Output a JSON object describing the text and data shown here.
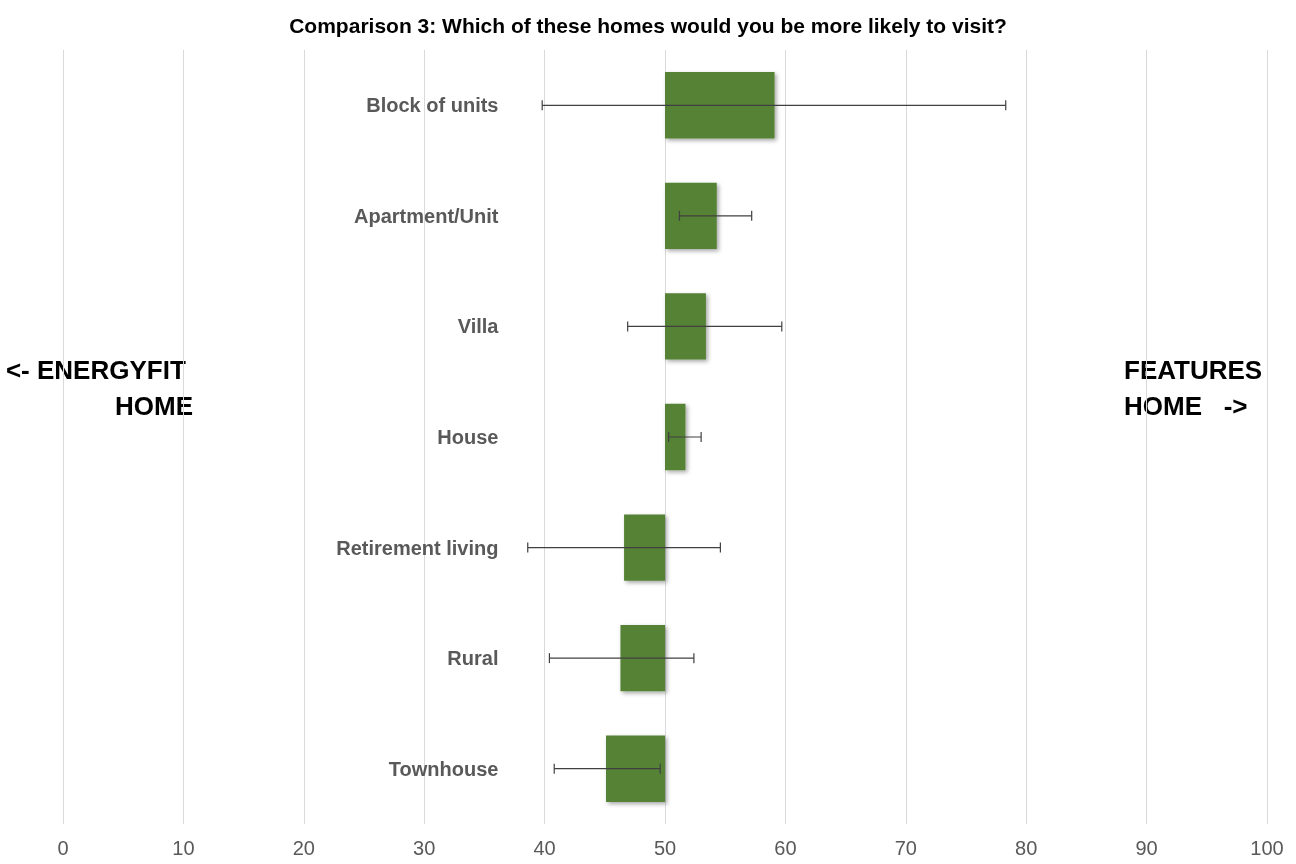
{
  "chart_data": {
    "type": "bar",
    "orientation": "horizontal",
    "title": "Comparison 3: Which of these homes would you be more likely to visit?",
    "categories": [
      "Block of units",
      "Apartment/Unit",
      "Villa",
      "House",
      "Retirement living",
      "Rural",
      "Townhouse"
    ],
    "base": [
      50,
      50,
      50,
      50,
      50,
      50,
      50
    ],
    "values": [
      9.1,
      4.3,
      3.4,
      1.7,
      -3.4,
      -3.7,
      -4.9
    ],
    "errors": [
      [
        39.8,
        78.3
      ],
      [
        51.2,
        57.2
      ],
      [
        46.9,
        59.7
      ],
      [
        50.3,
        53.0
      ],
      [
        38.6,
        54.6
      ],
      [
        40.4,
        52.4
      ],
      [
        40.8,
        49.6
      ]
    ],
    "color": "#548235",
    "xlim": [
      0,
      100
    ],
    "xticks": [
      0,
      10,
      20,
      30,
      40,
      50,
      60,
      70,
      80,
      90,
      100
    ],
    "grid": "x",
    "annotations": [
      "<- ENERGYFIT HOME",
      "FEATURES HOME   ->"
    ]
  }
}
